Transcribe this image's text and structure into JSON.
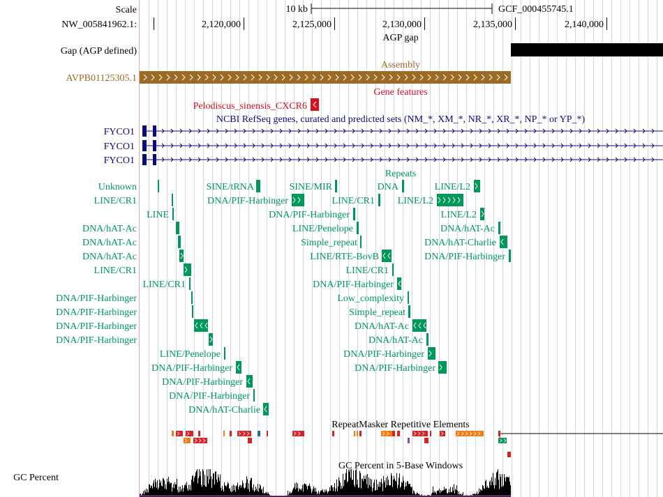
{
  "colors": {
    "gene": "#d70f1f",
    "refseq": "#0c0c78",
    "repeat": "#00975a",
    "assembly": "#9b6a25",
    "gap": "#000000",
    "grid": "#b8bed0",
    "ruler_line": "#f0a3a3",
    "rmsk_red": "#d22525",
    "rmsk_orange": "#f27a15",
    "rmsk_blue": "#1c6fa0",
    "rmsk_purple": "#8a4ba8"
  },
  "ruler": {
    "scale_label": "Scale",
    "scale_value": "10 kb",
    "assembly_name": "GCF_000455745.1",
    "chrom_label": "NW_005841962.1:",
    "positions": [
      "2,120,000",
      "2,125,000",
      "2,130,000",
      "2,135,000",
      "2,140,000"
    ]
  },
  "tracks": {
    "gap": {
      "title": "AGP gap",
      "label": "Gap (AGP defined)"
    },
    "assembly": {
      "title": "Assembly",
      "label": "AVPB01125305.1"
    },
    "gene_features": {
      "title": "Gene features",
      "item": "Pelodiscus_sinensis_CXCR6"
    },
    "refseq": {
      "title": "NCBI RefSeq genes, curated and predicted sets (NM_*, XM_*, NR_*, XR_*, NP_* or YP_*)",
      "labels": [
        "FYCO1",
        "FYCO1",
        "FYCO1"
      ]
    },
    "repeats": {
      "title": "Repeats",
      "items": [
        "Unknown",
        "SINE/tRNA",
        "SINE/MIR",
        "DNA",
        "LINE/L2",
        "LINE/CR1",
        "DNA/PIF-Harbinger",
        "LINE/CR1",
        "LINE/L2",
        "LINE",
        "DNA/PIF-Harbinger",
        "LINE/L2",
        "DNA/hAT-Ac",
        "LINE/Penelope",
        "DNA/hAT-Ac",
        "DNA/hAT-Ac",
        "Simple_repeat",
        "DNA/hAT-Charlie",
        "DNA/hAT-Ac",
        "LINE/RTE-BovB",
        "DNA/PIF-Harbinger",
        "LINE/CR1",
        "LINE/CR1",
        "LINE/CR1",
        "DNA/PIF-Harbinger",
        "DNA/PIF-Harbinger",
        "Low_complexity",
        "DNA/PIF-Harbinger",
        "Simple_repeat",
        "DNA/PIF-Harbinger",
        "DNA/hAT-Ac",
        "DNA/PIF-Harbinger",
        "DNA/hAT-Ac",
        "LINE/Penelope",
        "DNA/PIF-Harbinger",
        "DNA/PIF-Harbinger",
        "DNA/PIF-Harbinger",
        "DNA/PIF-Harbinger",
        "DNA/PIF-Harbinger",
        "DNA/hAT-Charlie"
      ]
    },
    "rmsk": {
      "title": "RepeatMasker Repetitive Elements"
    },
    "gc": {
      "title": "GC Percent in 5-Base Windows",
      "label": "GC Percent"
    }
  }
}
